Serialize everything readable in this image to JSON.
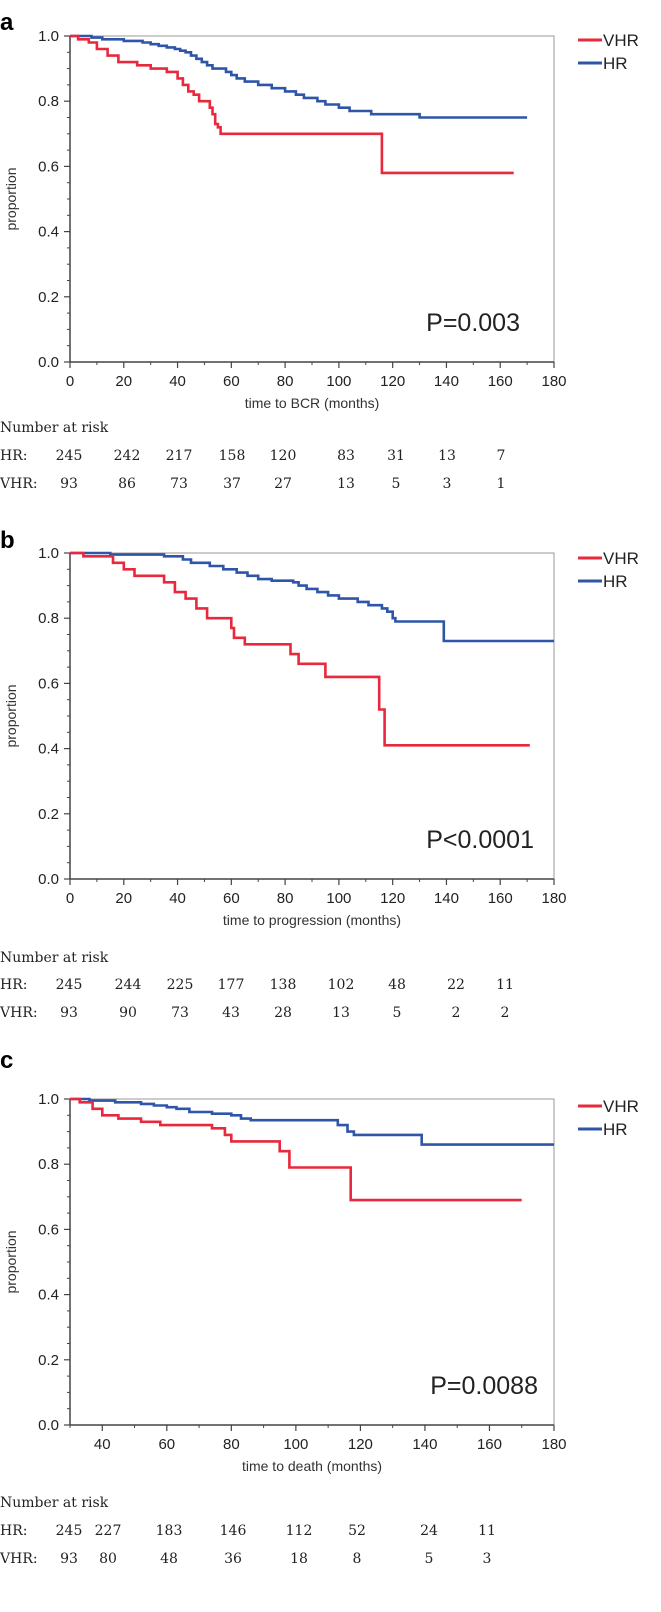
{
  "colors": {
    "VHR": "#e8283c",
    "HR": "#2f55a8",
    "frame": "#9a9a9a",
    "axis": "#444444"
  },
  "chart_data": [
    {
      "panel": "a",
      "type": "line",
      "step": true,
      "xlabel": "time to BCR (months)",
      "ylabel": "proportion",
      "xlim": [
        0,
        180
      ],
      "ylim": [
        0,
        1
      ],
      "xticks": [
        0,
        20,
        40,
        60,
        80,
        100,
        120,
        140,
        160,
        180
      ],
      "yticks": [
        "0.0",
        "0.2",
        "0.4",
        "0.6",
        "0.8",
        "1.0"
      ],
      "legend": "top-right",
      "pvalue": "P=0.003",
      "series": [
        {
          "name": "VHR",
          "points": [
            [
              0,
              1.0
            ],
            [
              3,
              0.99
            ],
            [
              7,
              0.98
            ],
            [
              10,
              0.96
            ],
            [
              14,
              0.94
            ],
            [
              18,
              0.92
            ],
            [
              25,
              0.91
            ],
            [
              30,
              0.9
            ],
            [
              36,
              0.89
            ],
            [
              40,
              0.87
            ],
            [
              42,
              0.85
            ],
            [
              44,
              0.83
            ],
            [
              46,
              0.82
            ],
            [
              48,
              0.8
            ],
            [
              52,
              0.78
            ],
            [
              53,
              0.76
            ],
            [
              54,
              0.73
            ],
            [
              55,
              0.72
            ],
            [
              56,
              0.7
            ],
            [
              116,
              0.7
            ],
            [
              116,
              0.58
            ],
            [
              165,
              0.58
            ]
          ]
        },
        {
          "name": "HR",
          "points": [
            [
              0,
              1.0
            ],
            [
              8,
              0.995
            ],
            [
              12,
              0.99
            ],
            [
              20,
              0.985
            ],
            [
              27,
              0.98
            ],
            [
              30,
              0.975
            ],
            [
              33,
              0.97
            ],
            [
              36,
              0.965
            ],
            [
              39,
              0.96
            ],
            [
              41,
              0.955
            ],
            [
              43,
              0.95
            ],
            [
              45,
              0.94
            ],
            [
              47,
              0.93
            ],
            [
              49,
              0.92
            ],
            [
              51,
              0.91
            ],
            [
              53,
              0.9
            ],
            [
              58,
              0.89
            ],
            [
              60,
              0.88
            ],
            [
              62,
              0.87
            ],
            [
              65,
              0.86
            ],
            [
              70,
              0.85
            ],
            [
              75,
              0.84
            ],
            [
              80,
              0.83
            ],
            [
              84,
              0.82
            ],
            [
              87,
              0.81
            ],
            [
              92,
              0.8
            ],
            [
              95,
              0.79
            ],
            [
              100,
              0.78
            ],
            [
              104,
              0.77
            ],
            [
              108,
              0.77
            ],
            [
              112,
              0.76
            ],
            [
              126,
              0.76
            ],
            [
              130,
              0.75
            ],
            [
              170,
              0.75
            ]
          ]
        }
      ]
    },
    {
      "panel": "b",
      "type": "line",
      "step": true,
      "xlabel": "time to progression (months)",
      "ylabel": "proportion",
      "xlim": [
        0,
        180
      ],
      "ylim": [
        0,
        1
      ],
      "xticks": [
        0,
        20,
        40,
        60,
        80,
        100,
        120,
        140,
        160,
        180
      ],
      "yticks": [
        "0.0",
        "0.2",
        "0.4",
        "0.6",
        "0.8",
        "1.0"
      ],
      "legend": "top-right",
      "pvalue": "P<0.0001",
      "series": [
        {
          "name": "VHR",
          "points": [
            [
              0,
              1.0
            ],
            [
              5,
              0.99
            ],
            [
              16,
              0.97
            ],
            [
              20,
              0.95
            ],
            [
              24,
              0.93
            ],
            [
              35,
              0.91
            ],
            [
              39,
              0.88
            ],
            [
              43,
              0.86
            ],
            [
              47,
              0.83
            ],
            [
              51,
              0.8
            ],
            [
              60,
              0.77
            ],
            [
              61,
              0.74
            ],
            [
              65,
              0.72
            ],
            [
              81,
              0.72
            ],
            [
              82,
              0.69
            ],
            [
              85,
              0.66
            ],
            [
              95,
              0.66
            ],
            [
              95,
              0.62
            ],
            [
              114,
              0.62
            ],
            [
              115,
              0.52
            ],
            [
              117,
              0.41
            ],
            [
              171,
              0.41
            ]
          ]
        },
        {
          "name": "HR",
          "points": [
            [
              0,
              1.0
            ],
            [
              15,
              0.995
            ],
            [
              35,
              0.99
            ],
            [
              42,
              0.98
            ],
            [
              45,
              0.97
            ],
            [
              52,
              0.96
            ],
            [
              57,
              0.95
            ],
            [
              62,
              0.94
            ],
            [
              66,
              0.93
            ],
            [
              70,
              0.92
            ],
            [
              75,
              0.915
            ],
            [
              83,
              0.91
            ],
            [
              85,
              0.9
            ],
            [
              88,
              0.89
            ],
            [
              92,
              0.88
            ],
            [
              96,
              0.87
            ],
            [
              100,
              0.86
            ],
            [
              107,
              0.85
            ],
            [
              111,
              0.84
            ],
            [
              116,
              0.83
            ],
            [
              118,
              0.82
            ],
            [
              120,
              0.8
            ],
            [
              121,
              0.79
            ],
            [
              128,
              0.79
            ],
            [
              139,
              0.79
            ],
            [
              139,
              0.73
            ],
            [
              180,
              0.73
            ]
          ]
        }
      ]
    },
    {
      "panel": "c",
      "type": "line",
      "step": true,
      "xlabel": "time to death (months)",
      "ylabel": "proportion",
      "xlim": [
        30,
        180
      ],
      "ylim": [
        0,
        1
      ],
      "xticks": [
        40,
        60,
        80,
        100,
        120,
        140,
        160,
        180
      ],
      "yticks": [
        "0.0",
        "0.2",
        "0.4",
        "0.6",
        "0.8",
        "1.0"
      ],
      "legend": "top-right",
      "pvalue": "P=0.0088",
      "series": [
        {
          "name": "VHR",
          "points": [
            [
              30,
              1.0
            ],
            [
              33,
              0.99
            ],
            [
              37,
              0.97
            ],
            [
              40,
              0.95
            ],
            [
              45,
              0.94
            ],
            [
              52,
              0.93
            ],
            [
              58,
              0.92
            ],
            [
              74,
              0.91
            ],
            [
              78,
              0.89
            ],
            [
              80,
              0.87
            ],
            [
              88,
              0.87
            ],
            [
              95,
              0.84
            ],
            [
              98,
              0.79
            ],
            [
              116,
              0.79
            ],
            [
              117,
              0.69
            ],
            [
              170,
              0.69
            ]
          ]
        },
        {
          "name": "HR",
          "points": [
            [
              30,
              1.0
            ],
            [
              36,
              0.995
            ],
            [
              44,
              0.99
            ],
            [
              52,
              0.985
            ],
            [
              56,
              0.98
            ],
            [
              60,
              0.975
            ],
            [
              63,
              0.97
            ],
            [
              67,
              0.96
            ],
            [
              74,
              0.955
            ],
            [
              80,
              0.95
            ],
            [
              83,
              0.94
            ],
            [
              86,
              0.935
            ],
            [
              110,
              0.935
            ],
            [
              113,
              0.92
            ],
            [
              116,
              0.9
            ],
            [
              118,
              0.89
            ],
            [
              138,
              0.89
            ],
            [
              139,
              0.86
            ],
            [
              180,
              0.86
            ]
          ]
        }
      ]
    }
  ],
  "risk_tables": [
    {
      "heading": "Number at risk",
      "rows": [
        {
          "label": "HR:",
          "values": [
            "245",
            "242",
            "217",
            "158",
            "120",
            "83",
            "31",
            "13",
            "7"
          ]
        },
        {
          "label": "VHR:",
          "values": [
            "93",
            "86",
            "73",
            "37",
            "27",
            "13",
            "5",
            "3",
            "1"
          ]
        }
      ]
    },
    {
      "heading": "Number at risk",
      "rows": [
        {
          "label": "HR:",
          "values": [
            "245",
            "244",
            "225",
            "177",
            "138",
            "102",
            "48",
            "22",
            "11"
          ]
        },
        {
          "label": "VHR:",
          "values": [
            "93",
            "90",
            "73",
            "43",
            "28",
            "13",
            "5",
            "2",
            "2"
          ]
        }
      ]
    },
    {
      "heading": "Number at risk",
      "rows": [
        {
          "label": "HR:",
          "values": [
            "245",
            "227",
            "183",
            "146",
            "112",
            "52",
            "24",
            "11"
          ]
        },
        {
          "label": "VHR:",
          "values": [
            "93",
            "80",
            "48",
            "36",
            "18",
            "8",
            "5",
            "3"
          ]
        }
      ]
    }
  ]
}
